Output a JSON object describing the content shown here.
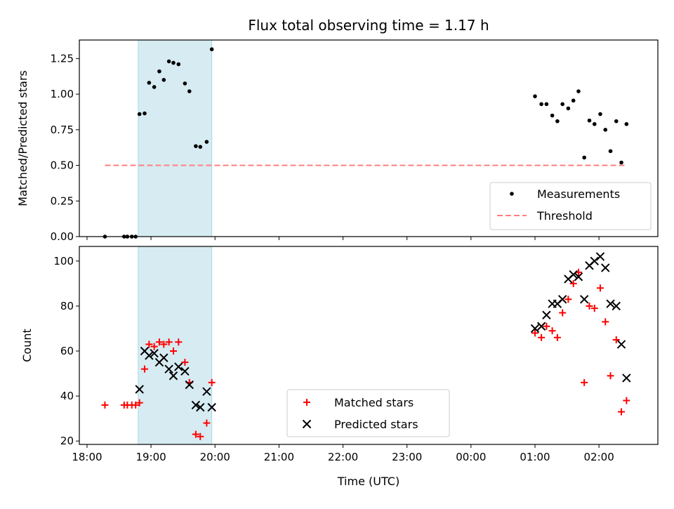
{
  "chart_data": [
    {
      "type": "scatter",
      "title": "Flux total observing time = 1.17 h",
      "xlabel": "",
      "ylabel": "Matched/Predicted stars",
      "xlim": [
        17.88,
        26.92
      ],
      "ylim": [
        0.0,
        1.38
      ],
      "yticks": [
        0.0,
        0.25,
        0.5,
        0.75,
        1.0,
        1.25
      ],
      "ytick_labels": [
        "0.00",
        "0.25",
        "0.50",
        "0.75",
        "1.00",
        "1.25"
      ],
      "shaded_interval": [
        18.8,
        19.95
      ],
      "series": [
        {
          "name": "Measurements",
          "x": [
            18.28,
            18.58,
            18.63,
            18.7,
            18.76,
            18.82,
            18.9,
            18.97,
            19.05,
            19.13,
            19.2,
            19.28,
            19.35,
            19.43,
            19.53,
            19.6,
            19.7,
            19.77,
            19.87,
            19.95,
            25.0,
            25.1,
            25.18,
            25.27,
            25.35,
            25.43,
            25.52,
            25.6,
            25.68,
            25.77,
            25.85,
            25.93,
            26.02,
            26.1,
            26.18,
            26.27,
            26.35,
            26.43
          ],
          "y": [
            0.0,
            0.0,
            0.0,
            0.0,
            0.0,
            0.86,
            0.865,
            1.08,
            1.05,
            1.16,
            1.1,
            1.23,
            1.22,
            1.21,
            1.075,
            1.02,
            0.635,
            0.63,
            0.665,
            1.315,
            0.985,
            0.93,
            0.93,
            0.85,
            0.81,
            0.93,
            0.9,
            0.955,
            1.02,
            0.555,
            0.815,
            0.79,
            0.86,
            0.75,
            0.6,
            0.81,
            0.52,
            0.79
          ]
        },
        {
          "name": "Threshold",
          "x": [
            18.28,
            26.43
          ],
          "y": [
            0.5,
            0.5
          ],
          "color": "#ff7f7f",
          "style": "dashed"
        }
      ],
      "legend": [
        "Measurements",
        "Threshold"
      ],
      "legend_position": "lower right"
    },
    {
      "type": "scatter",
      "title": "",
      "xlabel": "Time (UTC)",
      "ylabel": "Count",
      "xlim": [
        17.88,
        26.92
      ],
      "ylim": [
        18.5,
        106.5
      ],
      "xticks": [
        18,
        19,
        20,
        21,
        22,
        23,
        24,
        25,
        26
      ],
      "xtick_labels": [
        "18:00",
        "19:00",
        "20:00",
        "21:00",
        "22:00",
        "23:00",
        "00:00",
        "01:00",
        "02:00"
      ],
      "yticks": [
        20,
        40,
        60,
        80,
        100
      ],
      "ytick_labels": [
        "20",
        "40",
        "60",
        "80",
        "100"
      ],
      "shaded_interval": [
        18.8,
        19.95
      ],
      "series": [
        {
          "name": "Matched stars",
          "marker": "+",
          "color": "#ff0000",
          "x": [
            18.28,
            18.58,
            18.63,
            18.7,
            18.76,
            18.82,
            18.9,
            18.97,
            19.05,
            19.13,
            19.2,
            19.28,
            19.35,
            19.43,
            19.53,
            19.6,
            19.7,
            19.77,
            19.87,
            19.95,
            25.0,
            25.1,
            25.18,
            25.27,
            25.35,
            25.43,
            25.52,
            25.6,
            25.68,
            25.77,
            25.85,
            25.93,
            26.02,
            26.1,
            26.18,
            26.27,
            26.35,
            26.43
          ],
          "y": [
            36,
            36,
            36,
            36,
            36,
            37,
            52,
            63,
            62,
            64,
            63,
            64,
            60,
            64,
            55,
            46,
            23,
            22,
            28,
            46,
            68,
            66,
            71,
            69,
            66,
            77,
            83,
            90,
            95,
            46,
            80,
            79,
            88,
            73,
            49,
            65,
            33,
            38
          ]
        },
        {
          "name": "Predicted stars",
          "marker": "x",
          "color": "#000000",
          "x": [
            18.82,
            18.9,
            18.97,
            19.05,
            19.13,
            19.2,
            19.28,
            19.35,
            19.43,
            19.53,
            19.6,
            19.7,
            19.77,
            19.87,
            19.95,
            25.0,
            25.1,
            25.18,
            25.27,
            25.35,
            25.43,
            25.52,
            25.6,
            25.68,
            25.77,
            25.85,
            25.93,
            26.02,
            26.1,
            26.18,
            26.27,
            26.35,
            26.43
          ],
          "y": [
            43,
            60,
            58,
            59,
            55,
            57,
            52,
            49,
            53,
            51,
            45,
            36,
            35,
            42,
            35,
            70,
            71,
            76,
            81,
            81,
            83,
            92,
            94,
            93,
            83,
            98,
            100,
            102,
            97,
            81,
            80,
            63,
            48
          ]
        }
      ],
      "legend": [
        "Matched stars",
        "Predicted stars"
      ],
      "legend_position": "lower center"
    }
  ]
}
